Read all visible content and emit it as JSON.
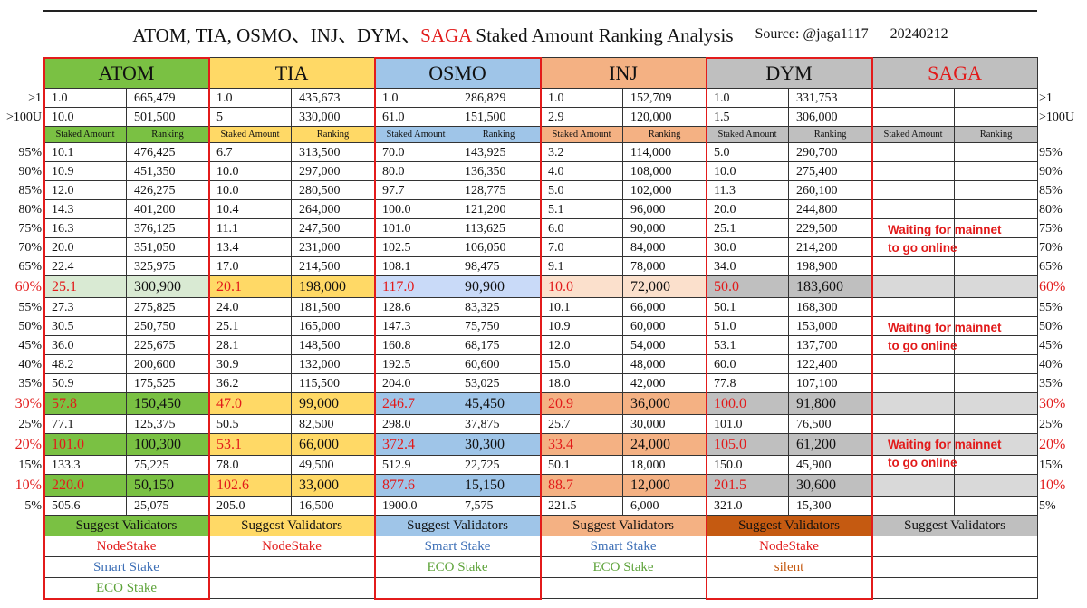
{
  "title": {
    "main_prefix": "ATOM, TIA, OSMO、INJ、DYM、",
    "main_saga": "SAGA",
    "main_suffix": " Staked Amount Ranking Analysis",
    "source": "Source: @jaga1117",
    "date": "20240212"
  },
  "colors": {
    "atom": "#7ac143",
    "atom_light": "#d9ead3",
    "tia": "#ffd966",
    "tia_light": "#ffe699",
    "osmo": "#9fc5e8",
    "osmo_light": "#c9daf8",
    "inj": "#f4b183",
    "inj_light": "#fbe0cc",
    "dym": "#bfbfbf",
    "dym_dark": "#c55a11",
    "saga": "#bfbfbf",
    "highlight_red": "#e21a1a"
  },
  "tokens": [
    {
      "name": "ATOM"
    },
    {
      "name": "TIA"
    },
    {
      "name": "OSMO"
    },
    {
      "name": "INJ"
    },
    {
      "name": "DYM"
    },
    {
      "name": "SAGA"
    }
  ],
  "subheaders": {
    "staked": "Staked Amount",
    "ranking": "Ranking"
  },
  "rows": [
    {
      "label": ">1",
      "cells": [
        [
          "1.0",
          "665,479"
        ],
        [
          "1.0",
          "435,673"
        ],
        [
          "1.0",
          "286,829"
        ],
        [
          "1.0",
          "152,709"
        ],
        [
          "1.0",
          "331,753"
        ],
        [
          "",
          ""
        ]
      ]
    },
    {
      "label": ">100U",
      "cells": [
        [
          "10.0",
          "501,500"
        ],
        [
          "5",
          "330,000"
        ],
        [
          "61.0",
          "151,500"
        ],
        [
          "2.9",
          "120,000"
        ],
        [
          "1.5",
          "306,000"
        ],
        [
          "",
          ""
        ]
      ]
    }
  ],
  "percent_rows": [
    {
      "label": "95%",
      "cells": [
        [
          "10.1",
          "476,425"
        ],
        [
          "6.7",
          "313,500"
        ],
        [
          "70.0",
          "143,925"
        ],
        [
          "3.2",
          "114,000"
        ],
        [
          "5.0",
          "290,700"
        ]
      ]
    },
    {
      "label": "90%",
      "cells": [
        [
          "10.9",
          "451,350"
        ],
        [
          "10.0",
          "297,000"
        ],
        [
          "80.0",
          "136,350"
        ],
        [
          "4.0",
          "108,000"
        ],
        [
          "10.0",
          "275,400"
        ]
      ]
    },
    {
      "label": "85%",
      "cells": [
        [
          "12.0",
          "426,275"
        ],
        [
          "10.0",
          "280,500"
        ],
        [
          "97.7",
          "128,775"
        ],
        [
          "5.0",
          "102,000"
        ],
        [
          "11.3",
          "260,100"
        ]
      ]
    },
    {
      "label": "80%",
      "cells": [
        [
          "14.3",
          "401,200"
        ],
        [
          "10.4",
          "264,000"
        ],
        [
          "100.0",
          "121,200"
        ],
        [
          "5.1",
          "96,000"
        ],
        [
          "20.0",
          "244,800"
        ]
      ]
    },
    {
      "label": "75%",
      "cells": [
        [
          "16.3",
          "376,125"
        ],
        [
          "11.1",
          "247,500"
        ],
        [
          "101.0",
          "113,625"
        ],
        [
          "6.0",
          "90,000"
        ],
        [
          "25.1",
          "229,500"
        ]
      ]
    },
    {
      "label": "70%",
      "cells": [
        [
          "20.0",
          "351,050"
        ],
        [
          "13.4",
          "231,000"
        ],
        [
          "102.5",
          "106,050"
        ],
        [
          "7.0",
          "84,000"
        ],
        [
          "30.0",
          "214,200"
        ]
      ]
    },
    {
      "label": "65%",
      "cells": [
        [
          "22.4",
          "325,975"
        ],
        [
          "17.0",
          "214,500"
        ],
        [
          "108.1",
          "98,475"
        ],
        [
          "9.1",
          "78,000"
        ],
        [
          "34.0",
          "198,900"
        ]
      ]
    },
    {
      "label": "60%",
      "hl": true,
      "cells": [
        [
          "25.1",
          "300,900"
        ],
        [
          "20.1",
          "198,000"
        ],
        [
          "117.0",
          "90,900"
        ],
        [
          "10.0",
          "72,000"
        ],
        [
          "50.0",
          "183,600"
        ]
      ]
    },
    {
      "label": "55%",
      "cells": [
        [
          "27.3",
          "275,825"
        ],
        [
          "24.0",
          "181,500"
        ],
        [
          "128.6",
          "83,325"
        ],
        [
          "10.1",
          "66,000"
        ],
        [
          "50.1",
          "168,300"
        ]
      ]
    },
    {
      "label": "50%",
      "cells": [
        [
          "30.5",
          "250,750"
        ],
        [
          "25.1",
          "165,000"
        ],
        [
          "147.3",
          "75,750"
        ],
        [
          "10.9",
          "60,000"
        ],
        [
          "51.0",
          "153,000"
        ]
      ]
    },
    {
      "label": "45%",
      "cells": [
        [
          "36.0",
          "225,675"
        ],
        [
          "28.1",
          "148,500"
        ],
        [
          "160.8",
          "68,175"
        ],
        [
          "12.0",
          "54,000"
        ],
        [
          "53.1",
          "137,700"
        ]
      ]
    },
    {
      "label": "40%",
      "cells": [
        [
          "48.2",
          "200,600"
        ],
        [
          "30.9",
          "132,000"
        ],
        [
          "192.5",
          "60,600"
        ],
        [
          "15.0",
          "48,000"
        ],
        [
          "60.0",
          "122,400"
        ]
      ]
    },
    {
      "label": "35%",
      "cells": [
        [
          "50.9",
          "175,525"
        ],
        [
          "36.2",
          "115,500"
        ],
        [
          "204.0",
          "53,025"
        ],
        [
          "18.0",
          "42,000"
        ],
        [
          "77.8",
          "107,100"
        ]
      ]
    },
    {
      "label": "30%",
      "hl": true,
      "cells": [
        [
          "57.8",
          "150,450"
        ],
        [
          "47.0",
          "99,000"
        ],
        [
          "246.7",
          "45,450"
        ],
        [
          "20.9",
          "36,000"
        ],
        [
          "100.0",
          "91,800"
        ]
      ]
    },
    {
      "label": "25%",
      "cells": [
        [
          "77.1",
          "125,375"
        ],
        [
          "50.5",
          "82,500"
        ],
        [
          "298.0",
          "37,875"
        ],
        [
          "25.7",
          "30,000"
        ],
        [
          "101.0",
          "76,500"
        ]
      ]
    },
    {
      "label": "20%",
      "hl": true,
      "cells": [
        [
          "101.0",
          "100,300"
        ],
        [
          "53.1",
          "66,000"
        ],
        [
          "372.4",
          "30,300"
        ],
        [
          "33.4",
          "24,000"
        ],
        [
          "105.0",
          "61,200"
        ]
      ]
    },
    {
      "label": "15%",
      "cells": [
        [
          "133.3",
          "75,225"
        ],
        [
          "78.0",
          "49,500"
        ],
        [
          "512.9",
          "22,725"
        ],
        [
          "50.1",
          "18,000"
        ],
        [
          "150.0",
          "45,900"
        ]
      ]
    },
    {
      "label": "10%",
      "hl": true,
      "cells": [
        [
          "220.0",
          "50,150"
        ],
        [
          "102.6",
          "33,000"
        ],
        [
          "877.6",
          "15,150"
        ],
        [
          "88.7",
          "12,000"
        ],
        [
          "201.5",
          "30,600"
        ]
      ]
    },
    {
      "label": "5%",
      "cells": [
        [
          "505.6",
          "25,075"
        ],
        [
          "205.0",
          "16,500"
        ],
        [
          "1900.0",
          "7,575"
        ],
        [
          "221.5",
          "6,000"
        ],
        [
          "321.0",
          "15,300"
        ]
      ]
    }
  ],
  "waiting_notes": [
    {
      "line1": "Waiting for mainnet",
      "line2": "to go online"
    },
    {
      "line1": "Waiting for mainnet",
      "line2": "to go online"
    },
    {
      "line1": "Waiting for mainnet",
      "line2": "to go online"
    }
  ],
  "suggest_label": "Suggest Validators",
  "validators": [
    [
      "NodeStake",
      "NodeStake",
      "Smart Stake",
      "Smart Stake",
      "NodeStake",
      ""
    ],
    [
      "Smart Stake",
      "",
      "ECO Stake",
      "ECO Stake",
      "silent",
      ""
    ],
    [
      "ECO Stake",
      "",
      "",
      "",
      "",
      ""
    ]
  ]
}
